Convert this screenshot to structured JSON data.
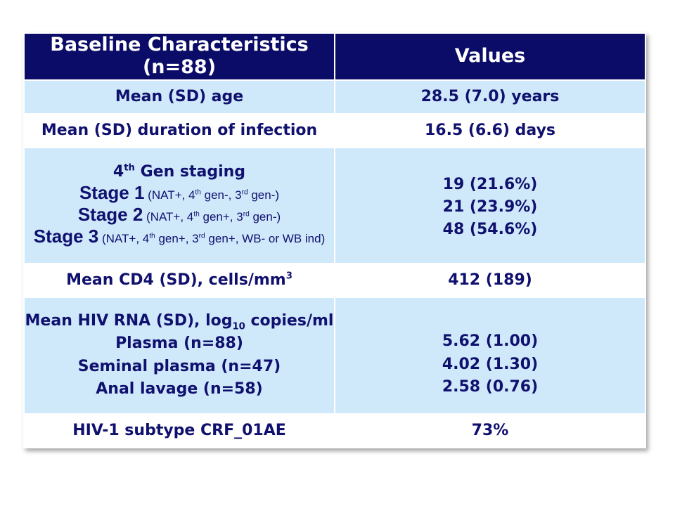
{
  "header": {
    "col1": "Baseline Characteristics (n=88)",
    "col2": "Values"
  },
  "rows": {
    "age": {
      "label": "Mean (SD) age",
      "value": "28.5 (7.0) years"
    },
    "duration": {
      "label": "Mean (SD) duration of infection",
      "value": "16.5 (6.6) days"
    },
    "staging": {
      "title_num": "4",
      "title_sup": "th",
      "title_rest": " Gen staging",
      "stage1": {
        "name": "Stage 1",
        "d1": " (NAT+, 4",
        "s1": "th",
        "d2": " gen-, 3",
        "s2": "rd",
        "d3": " gen-)"
      },
      "stage2": {
        "name": "Stage 2",
        "d1": " (NAT+, 4",
        "s1": "th",
        "d2": " gen+, 3",
        "s2": "rd",
        "d3": " gen-)"
      },
      "stage3": {
        "name": "Stage 3",
        "d1": " (NAT+, 4",
        "s1": "th",
        "d2": " gen+, 3",
        "s2": "rd",
        "d3": " gen+, WB- or WB ind)"
      },
      "values": [
        "19 (21.6%)",
        "21 (23.9%)",
        "48 (54.6%)"
      ]
    },
    "cd4": {
      "label": "Mean CD4 (SD), cells/mm",
      "label_sup": "3",
      "value": "412 (189)"
    },
    "rna": {
      "title_pre": "Mean HIV RNA (SD), log",
      "title_sub": "10",
      "title_post": " copies/ml",
      "items": [
        "Plasma (n=88)",
        "Seminal plasma (n=47)",
        "Anal lavage (n=58)"
      ],
      "values": [
        "5.62 (1.00)",
        "4.02 (1.30)",
        "2.58 (0.76)"
      ]
    },
    "subtype": {
      "label": "HIV-1 subtype CRF_01AE",
      "value": "73%"
    }
  },
  "colors": {
    "header_bg": "#0b0b68",
    "shade_bg": "#cfe9fb",
    "text": "#10106e"
  }
}
